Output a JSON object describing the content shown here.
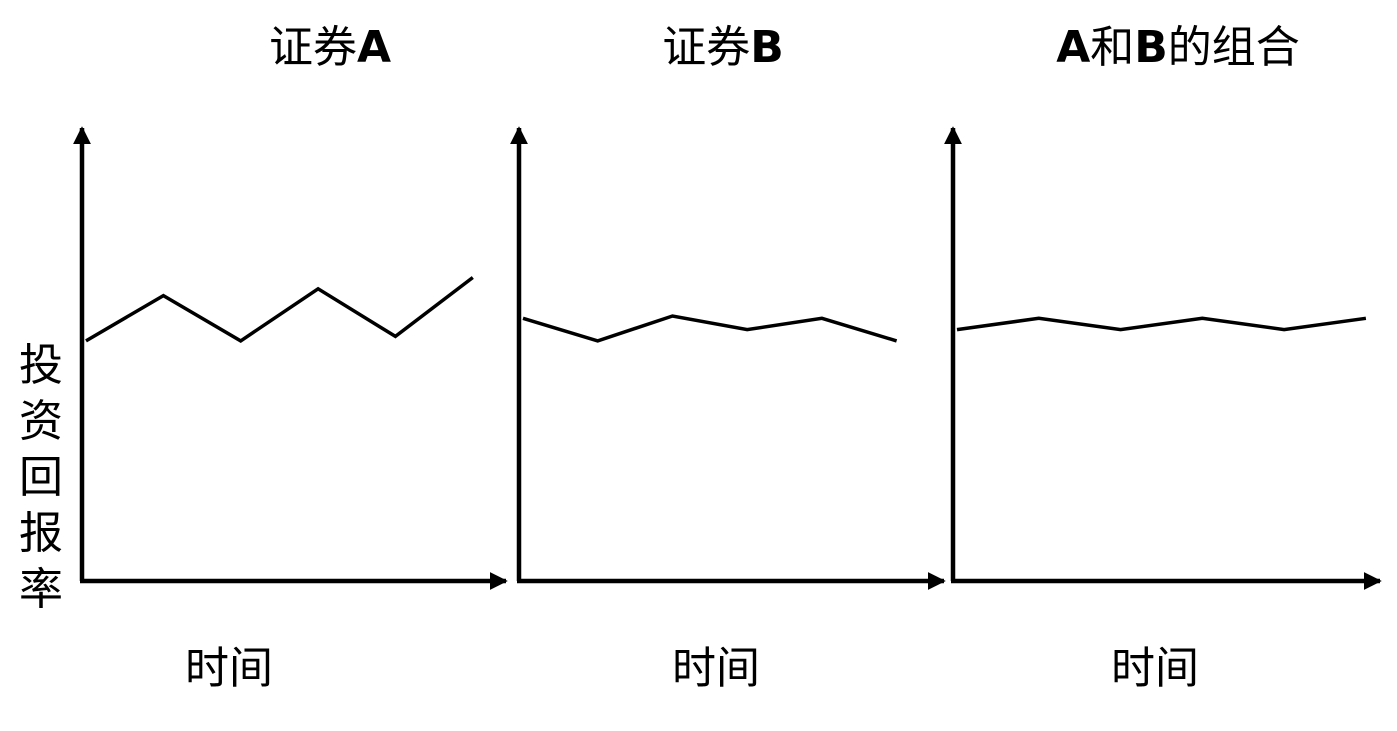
{
  "colors": {
    "line": "#000000",
    "axis": "#000000",
    "background": "#ffffff"
  },
  "shared_ylabel": "投资回报率",
  "chart_data": [
    {
      "type": "line",
      "title": "证券A",
      "title_parts": [
        {
          "text": "证券",
          "bold": false
        },
        {
          "text": "A",
          "bold": true
        }
      ],
      "xlabel": "时间",
      "ylabel": "投资回报率",
      "grid": false,
      "x": [
        0,
        1,
        2,
        3,
        4,
        5
      ],
      "values": [
        0.53,
        0.63,
        0.53,
        0.645,
        0.54,
        0.67
      ],
      "ylim": [
        0,
        1
      ],
      "xlim": [
        0,
        5.3
      ]
    },
    {
      "type": "line",
      "title": "证券B",
      "title_parts": [
        {
          "text": "证券",
          "bold": false
        },
        {
          "text": "B",
          "bold": true
        }
      ],
      "xlabel": "时间",
      "ylabel": "",
      "grid": false,
      "x": [
        0,
        1,
        2,
        3,
        4,
        5
      ],
      "values": [
        0.58,
        0.53,
        0.585,
        0.555,
        0.58,
        0.53
      ],
      "ylim": [
        0,
        1
      ],
      "xlim": [
        0,
        5.5
      ]
    },
    {
      "type": "line",
      "title": "A和B的组合",
      "title_parts": [
        {
          "text": "A",
          "bold": true
        },
        {
          "text": "和",
          "bold": false
        },
        {
          "text": "B",
          "bold": true
        },
        {
          "text": "的组合",
          "bold": false
        }
      ],
      "xlabel": "时间",
      "ylabel": "",
      "grid": false,
      "x": [
        0,
        1,
        2,
        3,
        4,
        5
      ],
      "values": [
        0.555,
        0.58,
        0.555,
        0.58,
        0.555,
        0.58
      ],
      "ylim": [
        0,
        1
      ],
      "xlim": [
        0,
        5.05
      ]
    }
  ]
}
